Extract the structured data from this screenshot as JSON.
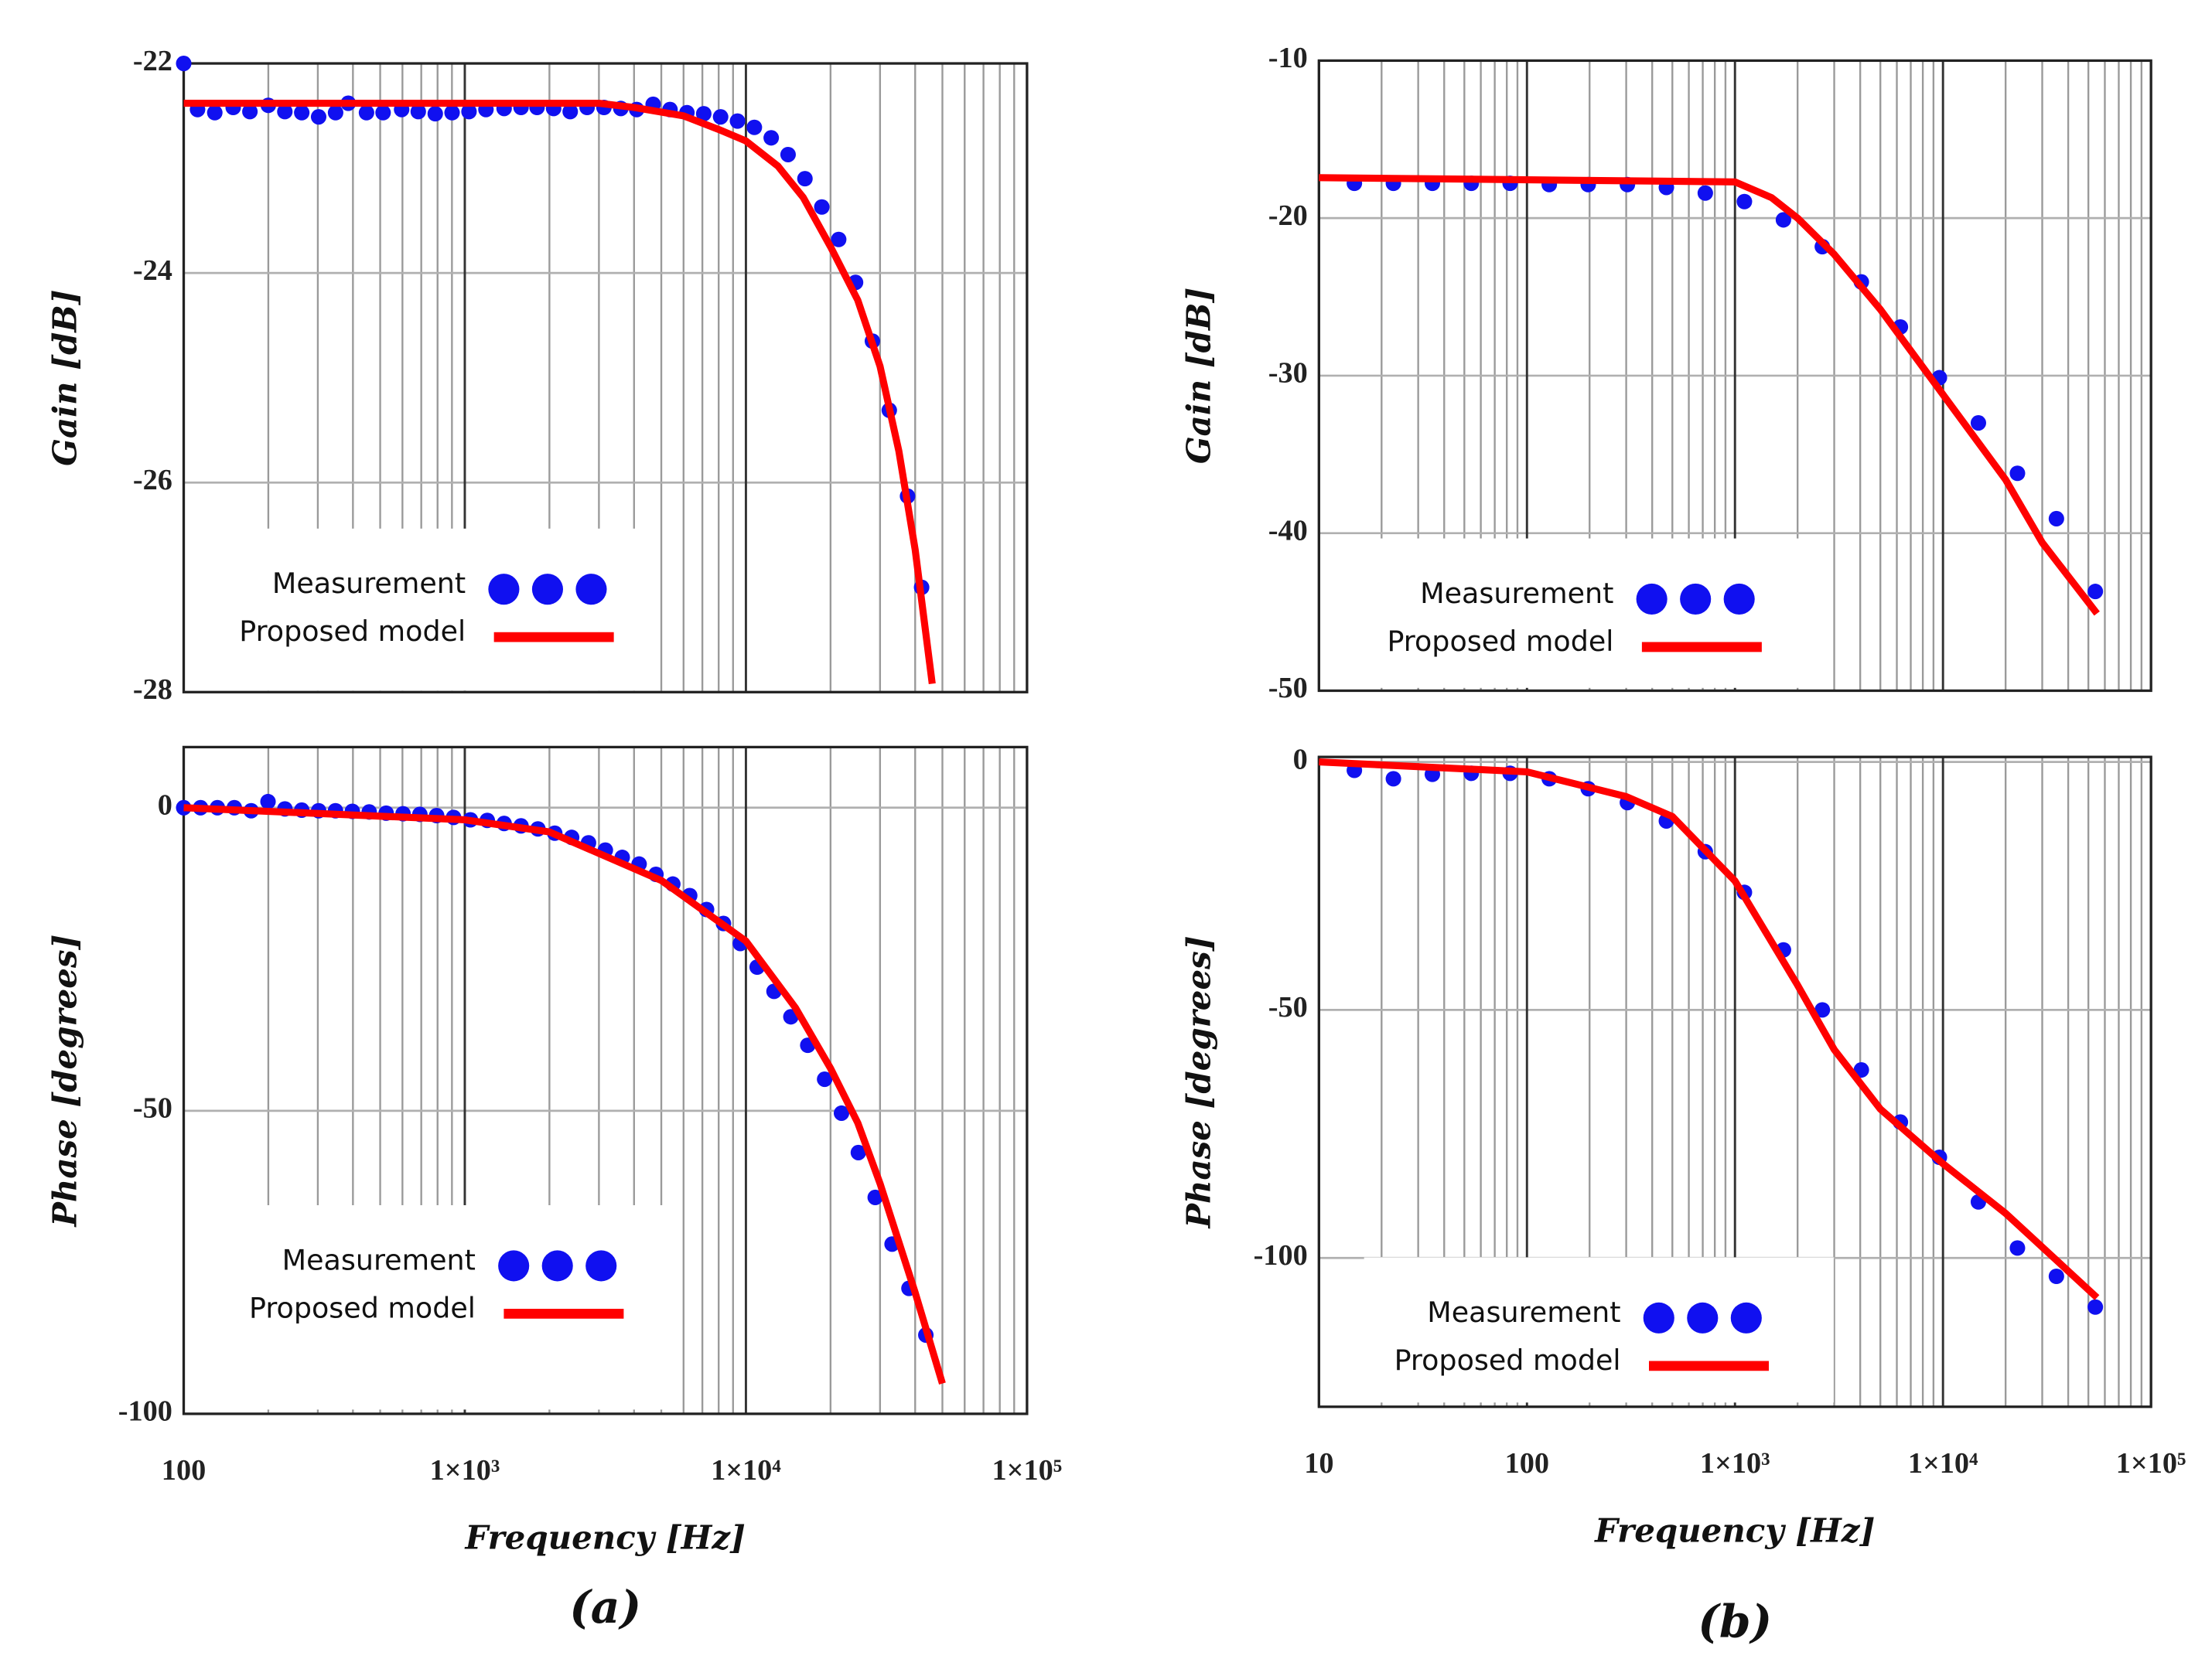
{
  "chart_data": [
    {
      "type": "line",
      "xscale": "log",
      "ylabel": "Gain [dB]",
      "xlim": [
        100,
        100000
      ],
      "xticks": [
        100,
        1000,
        10000,
        100000
      ],
      "ylim": [
        -28,
        -22
      ],
      "yticks": [
        -28,
        -26,
        -24,
        -22
      ],
      "grid": true,
      "minor_grid": true,
      "legend": "lower left",
      "series": [
        {
          "name": "Measurement",
          "mode": "markers",
          "color": "#1010f0",
          "x": [
            100,
            112,
            129,
            150,
            172,
            200,
            229,
            263,
            302,
            347,
            385,
            447,
            512,
            596,
            683,
            785,
            901,
            1035,
            1189,
            1380,
            1585,
            1807,
            2070,
            2371,
            2723,
            3126,
            3589,
            4087,
            4677,
            5370,
            6166,
            7079,
            8128,
            9333,
            10715,
            12302,
            14125,
            16218,
            18621,
            21380,
            24547,
            28184,
            32359,
            37584,
            42170
          ],
          "values": [
            -22.0,
            -22.44,
            -22.47,
            -22.42,
            -22.46,
            -22.4,
            -22.46,
            -22.47,
            -22.51,
            -22.47,
            -22.38,
            -22.47,
            -22.47,
            -22.44,
            -22.46,
            -22.48,
            -22.47,
            -22.46,
            -22.44,
            -22.43,
            -22.42,
            -22.42,
            -22.43,
            -22.46,
            -22.42,
            -22.42,
            -22.43,
            -22.44,
            -22.39,
            -22.44,
            -22.47,
            -22.48,
            -22.51,
            -22.55,
            -22.61,
            -22.71,
            -22.87,
            -23.1,
            -23.37,
            -23.68,
            -24.09,
            -24.65,
            -25.31,
            -26.13,
            -27.0
          ]
        },
        {
          "name": "Proposed model",
          "mode": "line",
          "color": "#ff0000",
          "x": [
            100,
            1000,
            3000,
            4000,
            6000,
            8000,
            10000,
            13000,
            16000,
            20000,
            25000,
            30000,
            35000,
            40000,
            46000
          ],
          "values": [
            -22.38,
            -22.38,
            -22.38,
            -22.42,
            -22.5,
            -22.63,
            -22.74,
            -22.98,
            -23.28,
            -23.75,
            -24.26,
            -24.89,
            -25.7,
            -26.64,
            -27.92
          ]
        }
      ]
    },
    {
      "type": "line",
      "xscale": "log",
      "ylabel": "Phase [degrees]",
      "xlabel": "Frequency [Hz]",
      "caption": "(a)",
      "xlim": [
        100,
        100000
      ],
      "xticks": [
        100,
        {
          "value": 1000,
          "label": "1×10³"
        },
        {
          "value": 10000,
          "label": "1×10⁴"
        },
        {
          "value": 100000,
          "label": "1×10⁵"
        }
      ],
      "ylim": [
        -100,
        10
      ],
      "yticks": [
        -100,
        -50,
        0
      ],
      "grid": true,
      "minor_grid": true,
      "legend": "lower left",
      "series": [
        {
          "name": "Measurement",
          "mode": "markers",
          "color": "#1010f0",
          "x": [
            100,
            114.8,
            131.8,
            151.4,
            173.8,
            199.5,
            229.1,
            263,
            302,
            346.7,
            398,
            457,
            525,
            603,
            692,
            794,
            912,
            1047,
            1202,
            1380,
            1585,
            1820,
            2089,
            2399,
            2754,
            3162,
            3631,
            4169,
            4786,
            5495,
            6310,
            7244,
            8318,
            9550,
            10965,
            12589,
            14454,
            16596,
            19055,
            21878,
            25119,
            28840,
            33113,
            38019,
            43652
          ],
          "values": [
            0,
            0,
            0,
            0,
            -0.5,
            1,
            -0.2,
            -0.4,
            -0.5,
            -0.5,
            -0.6,
            -0.7,
            -0.9,
            -1.0,
            -1.1,
            -1.3,
            -1.6,
            -2.0,
            -2.1,
            -2.6,
            -3.0,
            -3.5,
            -4.2,
            -4.9,
            -5.8,
            -7.0,
            -8.2,
            -9.3,
            -11.0,
            -12.6,
            -14.5,
            -16.8,
            -19.1,
            -22.4,
            -26.3,
            -30.3,
            -34.5,
            -39.2,
            -44.8,
            -50.4,
            -56.9,
            -64.3,
            -72.0,
            -79.3,
            -87.0
          ]
        },
        {
          "name": "Proposed model",
          "mode": "line",
          "color": "#ff0000",
          "x": [
            100,
            1000,
            2000,
            5000,
            10000,
            15000,
            20000,
            25000,
            30000,
            40000,
            50000
          ],
          "values": [
            0,
            -2,
            -4,
            -12,
            -22,
            -33,
            -43,
            -52,
            -62,
            -80,
            -95
          ]
        }
      ]
    },
    {
      "type": "line",
      "xscale": "log",
      "ylabel": "Gain [dB]",
      "xlim": [
        10,
        100000
      ],
      "xticks": [
        10,
        100,
        1000,
        10000,
        100000
      ],
      "ylim": [
        -50,
        -10
      ],
      "yticks": [
        -50,
        -40,
        -30,
        -20,
        -10
      ],
      "grid": true,
      "minor_grid": true,
      "legend": "lower left",
      "series": [
        {
          "name": "Measurement",
          "mode": "markers",
          "color": "#1010f0",
          "x": [
            14.8,
            22.8,
            35.1,
            54,
            83,
            128,
            197,
            304,
            468,
            720,
            1110,
            1710,
            2630,
            4050,
            6240,
            9610,
            14800,
            22800,
            35100,
            54000
          ],
          "values": [
            -17.79,
            -17.79,
            -17.79,
            -17.79,
            -17.79,
            -17.87,
            -17.87,
            -17.87,
            -18.05,
            -18.41,
            -18.95,
            -20.11,
            -21.81,
            -24.05,
            -26.91,
            -30.13,
            -33.0,
            -36.2,
            -39.08,
            -43.7
          ]
        },
        {
          "name": "Proposed model",
          "mode": "line",
          "color": "#ff0000",
          "x": [
            10,
            1000,
            1500,
            2000,
            3000,
            5000,
            10000,
            20000,
            30000,
            55000
          ],
          "values": [
            -17.43,
            -17.7,
            -18.7,
            -20,
            -22.3,
            -25.8,
            -31.2,
            -36.6,
            -40.6,
            -45.1
          ]
        }
      ]
    },
    {
      "type": "line",
      "xscale": "log",
      "ylabel": "Phase [degrees]",
      "xlabel": "Frequency [Hz]",
      "caption": "(b)",
      "xlim": [
        10,
        100000
      ],
      "xticks": [
        10,
        100,
        {
          "value": 1000,
          "label": "1×10³"
        },
        {
          "value": 10000,
          "label": "1×10⁴"
        },
        {
          "value": 100000,
          "label": "1×10⁵"
        }
      ],
      "ylim": [
        -130,
        1
      ],
      "yticks": [
        -100,
        -50,
        0
      ],
      "grid": true,
      "minor_grid": true,
      "legend": "lower left",
      "series": [
        {
          "name": "Measurement",
          "mode": "markers",
          "color": "#1010f0",
          "x": [
            14.8,
            22.8,
            35.1,
            54,
            83,
            128,
            197,
            304,
            468,
            720,
            1110,
            1710,
            2630,
            4050,
            6240,
            9610,
            14800,
            22800,
            35100,
            54000
          ],
          "values": [
            -1.7,
            -3.4,
            -2.5,
            -2.3,
            -2.3,
            -3.4,
            -5.4,
            -8.2,
            -11.9,
            -18.1,
            -26.3,
            -37.9,
            -50,
            -62.1,
            -72.6,
            -79.7,
            -88.7,
            -98,
            -103.7,
            -109.9
          ]
        },
        {
          "name": "Proposed model",
          "mode": "line",
          "color": "#ff0000",
          "x": [
            10,
            100,
            300,
            500,
            1000,
            2000,
            3000,
            5000,
            10000,
            20000,
            55000
          ],
          "values": [
            0,
            -2,
            -7,
            -11,
            -24,
            -45,
            -58,
            -70,
            -81,
            -91,
            -108
          ]
        }
      ]
    }
  ]
}
